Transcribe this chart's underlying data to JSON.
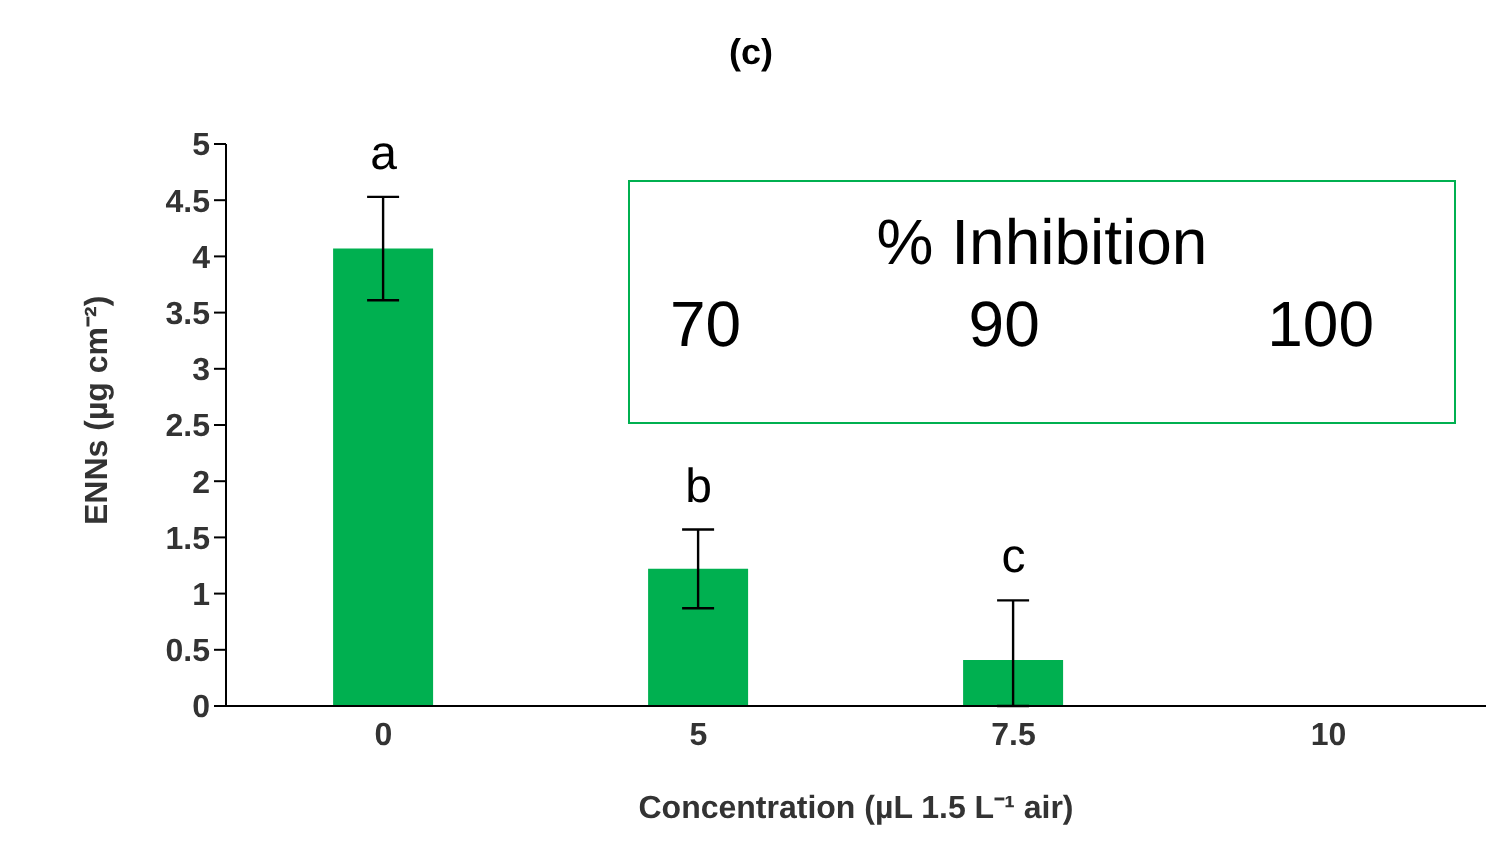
{
  "chart_data": {
    "type": "bar",
    "title": "(c)",
    "xlabel": "Concentration (µL 1.5 L⁻¹ air)",
    "ylabel": "ENNs (µg cm⁻²)",
    "categories": [
      "0",
      "5",
      "7.5",
      "10"
    ],
    "values": [
      4.07,
      1.22,
      0.41,
      0
    ],
    "errors": [
      0.46,
      0.35,
      [
        0,
        0.94
      ],
      null
    ],
    "color": "#00b050",
    "ylim": [
      0,
      5
    ],
    "yticks": [
      0,
      0.5,
      1,
      1.5,
      2,
      2.5,
      3,
      3.5,
      4,
      4.5,
      5
    ],
    "grid": false,
    "legend": false,
    "annotations": [
      "a",
      "b",
      "c",
      "% Inhibition",
      "70",
      "90",
      "100"
    ]
  }
}
